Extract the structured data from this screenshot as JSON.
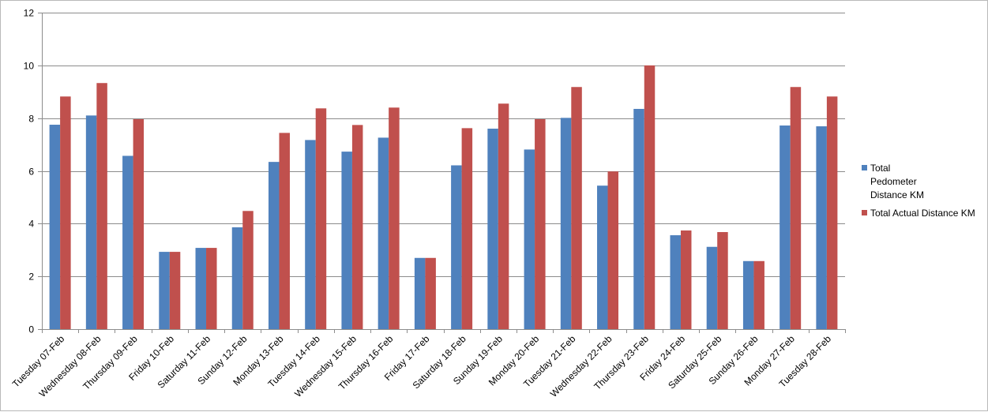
{
  "chart_data": {
    "type": "bar",
    "categories": [
      "Tuesday  07-Feb",
      "Wednesday  08-Feb",
      "Thursday  09-Feb",
      "Friday  10-Feb",
      "Saturday  11-Feb",
      "Sunday  12-Feb",
      "Monday  13-Feb",
      "Tuesday  14-Feb",
      "Wednesday  15-Feb",
      "Thursday  16-Feb",
      "Friday  17-Feb",
      "Saturday  18-Feb",
      "Sunday  19-Feb",
      "Monday  20-Feb",
      "Tuesday  21-Feb",
      "Wednesday  22-Feb",
      "Thursday  23-Feb",
      "Friday  24-Feb",
      "Saturday  25-Feb",
      "Sunday  26-Feb",
      "Monday  27-Feb",
      "Tuesday  28-Feb"
    ],
    "series": [
      {
        "name": "Total Pedometer Distance KM",
        "legend_lines": [
          "Total",
          "Pedometer",
          "Distance KM"
        ],
        "color": "#4f81bd",
        "values": [
          7.75,
          8.1,
          6.57,
          2.93,
          3.08,
          3.86,
          6.34,
          7.17,
          6.73,
          7.26,
          2.7,
          6.21,
          7.6,
          6.81,
          8.01,
          5.44,
          8.35,
          3.56,
          3.12,
          2.58,
          7.72,
          7.69
        ]
      },
      {
        "name": "Total Actual Distance KM",
        "legend_lines": [
          "Total Actual Distance KM"
        ],
        "color": "#c0504d",
        "values": [
          8.82,
          9.33,
          7.96,
          2.93,
          3.08,
          4.48,
          7.44,
          8.37,
          7.74,
          8.4,
          2.7,
          7.62,
          8.55,
          7.96,
          9.18,
          5.98,
          10.0,
          3.74,
          3.68,
          2.58,
          9.18,
          8.82
        ]
      }
    ],
    "ylim": [
      0,
      12
    ],
    "yticks": [
      "0",
      "2",
      "4",
      "6",
      "8",
      "10",
      "12"
    ],
    "grid": true,
    "legend_position": "right",
    "title": "",
    "xlabel": "",
    "ylabel": ""
  }
}
